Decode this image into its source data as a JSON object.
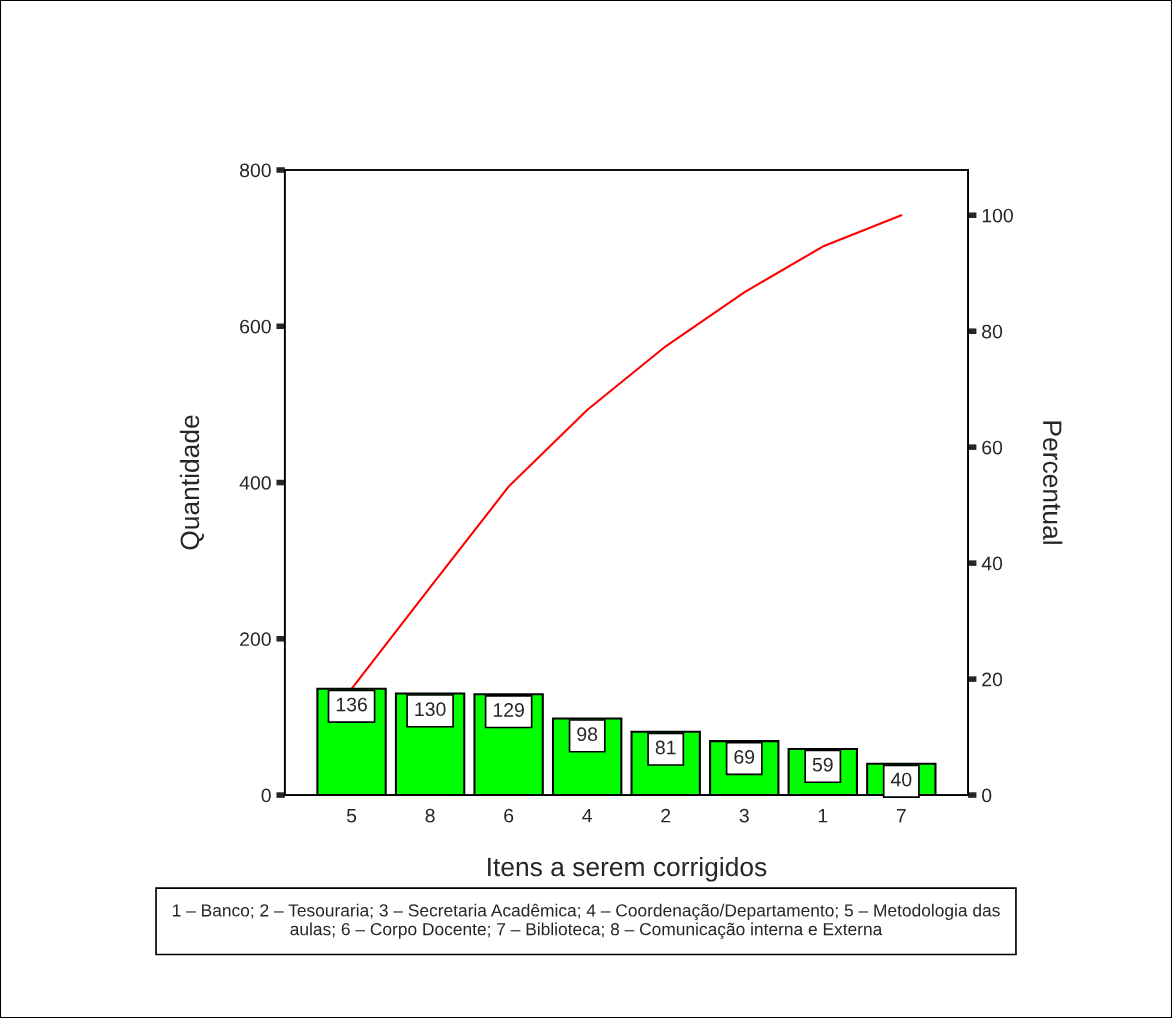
{
  "chart_data": {
    "type": "bar",
    "xlabel": "Itens a serem corrigidos",
    "ylabel": "Quantidade",
    "y2label": "Percentual",
    "categories": [
      "5",
      "8",
      "6",
      "4",
      "2",
      "3",
      "1",
      "7"
    ],
    "series": [
      {
        "color": "#00ff00",
        "values": [
          136,
          130,
          129,
          98,
          81,
          69,
          59,
          40
        ],
        "value_labels": [
          "136",
          "130",
          "129",
          "98",
          "81",
          "69",
          "59",
          "40"
        ]
      },
      {
        "type": "line",
        "axis": "y2",
        "color": "#ff0000",
        "values": [
          18.3,
          35.8,
          53.2,
          66.4,
          77.4,
          86.7,
          94.6,
          100
        ]
      }
    ],
    "ylim": [
      0,
      800
    ],
    "yticks": [
      0,
      200,
      400,
      600,
      800
    ],
    "y2lim": [
      0,
      107.8
    ],
    "y2ticks": [
      0,
      20,
      40,
      60,
      80,
      100
    ],
    "grid": false,
    "annotations": [
      "1 – Banco; 2 – Tesouraria; 3 – Secretaria Acadêmica; 4 – Coordenação/Departamento; 5 – Metodologia das aulas; 6 – Corpo Docente; 7 – Biblioteca; 8 – Comunicação interna e Externa"
    ]
  }
}
